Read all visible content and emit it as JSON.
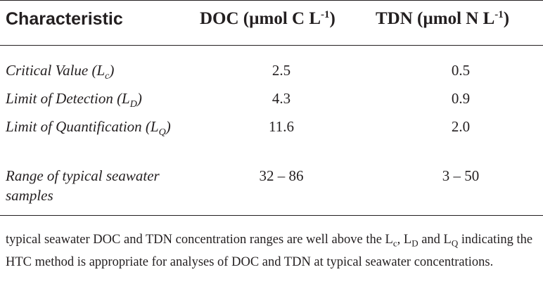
{
  "table": {
    "headers": {
      "characteristic": "Characteristic",
      "doc": "DOC (µmol C L",
      "doc_exp": "-1",
      "doc_close": ")",
      "tdn": "TDN (µmol N L",
      "tdn_exp": "-1",
      "tdn_close": ")"
    },
    "rows": [
      {
        "label": "Critical Value (L",
        "sub": "c",
        "label_close": ")",
        "doc": "2.5",
        "tdn": "0.5"
      },
      {
        "label": "Limit of Detection (L",
        "sub": "D",
        "label_close": ")",
        "doc": "4.3",
        "tdn": "0.9"
      },
      {
        "label": "Limit of Quantification (L",
        "sub": "Q",
        "label_close": ")",
        "doc": "11.6",
        "tdn": "2.0"
      },
      {
        "label": "Range of typical seawater samples",
        "doc": "32 – 86",
        "tdn": "3 – 50"
      }
    ]
  },
  "note": {
    "part1": "typical seawater DOC and TDN concentration ranges are well above the L",
    "sub1": "c",
    "part2": ", L",
    "sub2": "D",
    "part3": " and L",
    "sub3": "Q",
    "part4": " indicating the HTC method is appropriate for analyses of DOC and TDN at typical seawater concentrations."
  }
}
